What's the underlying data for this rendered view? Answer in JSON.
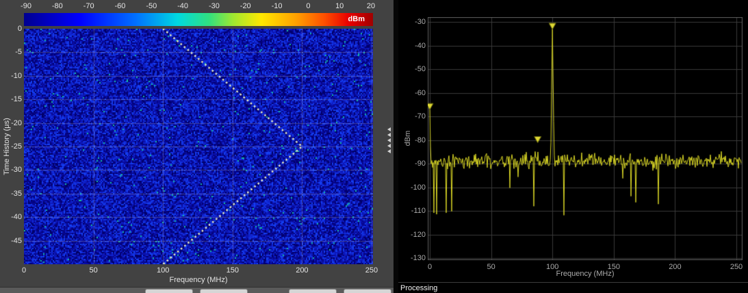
{
  "left_panel": {
    "colorbar": {
      "tick_labels": [
        "-90",
        "-80",
        "-70",
        "-60",
        "-50",
        "-40",
        "-30",
        "-20",
        "-10",
        "0",
        "10",
        "20"
      ],
      "unit_label": "dBm"
    },
    "spectrogram": {
      "xlabel": "Frequency (MHz)",
      "ylabel": "Time History (μs)",
      "x_tick_labels": [
        "0",
        "50",
        "100",
        "150",
        "200",
        "250"
      ],
      "y_tick_labels": [
        "0",
        "-5",
        "-10",
        "-15",
        "-20",
        "-25",
        "-30",
        "-35",
        "-40",
        "-45"
      ]
    }
  },
  "right_panel": {
    "spectrum": {
      "xlabel": "Frequency (MHz)",
      "ylabel": "dBm",
      "x_tick_labels": [
        "0",
        "50",
        "100",
        "150",
        "200",
        "250"
      ],
      "y_tick_labels": [
        "-30",
        "-40",
        "-50",
        "-60",
        "-70",
        "-80",
        "-90",
        "-100",
        "-110",
        "-120",
        "-130"
      ]
    },
    "status": "Processing"
  },
  "chart_data": [
    {
      "type": "heatmap",
      "title": "Spectrogram time history of FMCW chirp",
      "xlabel": "Frequency (MHz)",
      "ylabel": "Time History (μs)",
      "xlim": [
        0,
        251
      ],
      "ylim": [
        -50,
        0
      ],
      "x_ticks": [
        0,
        50,
        100,
        150,
        200,
        250
      ],
      "y_ticks": [
        0,
        -5,
        -10,
        -15,
        -20,
        -25,
        -30,
        -35,
        -40,
        -45
      ],
      "colorbar": {
        "label": "dBm",
        "min": -90,
        "max": 20,
        "ticks": [
          -90,
          -80,
          -70,
          -60,
          -50,
          -40,
          -30,
          -20,
          -10,
          0,
          10,
          20
        ],
        "colormap": "jet"
      },
      "noise_floor_dbm": -90,
      "signal_path": [
        [
          100,
          0
        ],
        [
          200,
          -25
        ],
        [
          100,
          -50
        ]
      ],
      "signal_style": "dotted",
      "signal_color": "#e9edc0",
      "grid": true
    },
    {
      "type": "line",
      "title": "Spectrum",
      "xlabel": "Frequency (MHz)",
      "ylabel": "dBm",
      "xlim": [
        0,
        255
      ],
      "ylim": [
        -130,
        -28
      ],
      "x_ticks": [
        0,
        50,
        100,
        150,
        200,
        250
      ],
      "y_ticks": [
        -30,
        -40,
        -50,
        -60,
        -70,
        -80,
        -90,
        -100,
        -110,
        -120,
        -130
      ],
      "noise_floor_dbm": -90,
      "noise_dips_to_dbm": -112,
      "peak": {
        "x_mhz": 100,
        "y_dbm": -32
      },
      "markers": [
        {
          "x_mhz": 0,
          "y_dbm": -66
        },
        {
          "x_mhz": 88,
          "y_dbm": -80
        },
        {
          "x_mhz": 100,
          "y_dbm": -32
        }
      ],
      "line_color": "#d8d525",
      "background": "#000000",
      "grid": true,
      "legend": "none"
    }
  ]
}
